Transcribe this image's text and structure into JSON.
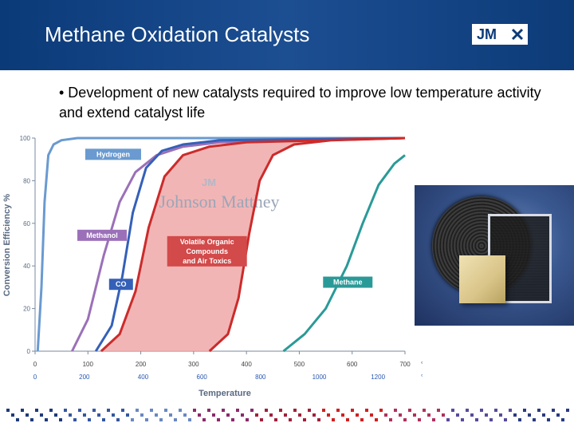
{
  "slide": {
    "title": "Methane Oxidation Catalysts",
    "logo_text": "JM",
    "bullet": "• Development of new catalysts required to improve low temperature activity and extend catalyst life",
    "header_color": "#0b3a78"
  },
  "chart_data": {
    "type": "line",
    "title": "",
    "ylabel": "Conversion Efficiency   %",
    "xlabel": "Temperature",
    "ylim": [
      0,
      100
    ],
    "xlim": [
      0,
      700
    ],
    "x_unit_primary": "°C",
    "x_unit_secondary": "°F",
    "yticks": [
      "0",
      "20",
      "40",
      "60",
      "80",
      "100"
    ],
    "xticks_c": [
      "0",
      "100",
      "200",
      "300",
      "400",
      "500",
      "600",
      "700"
    ],
    "xticks_f": [
      "0",
      "200",
      "400",
      "600",
      "800",
      "1000",
      "1200"
    ],
    "xticks_f_values_c": [
      -17.8,
      93.3,
      204.4,
      315.6,
      426.7,
      537.8,
      648.9
    ],
    "watermark": "Johnson Matthey",
    "watermark_logo": "JM",
    "series": [
      {
        "name": "Hydrogen",
        "color": "#6a9ad0",
        "x": [
          5,
          12,
          18,
          25,
          35,
          50,
          80,
          700
        ],
        "y": [
          0,
          30,
          70,
          92,
          97,
          99,
          100,
          100
        ]
      },
      {
        "name": "Methanol",
        "color": "#9b70b8",
        "x": [
          70,
          100,
          130,
          160,
          190,
          230,
          280,
          350,
          450,
          700
        ],
        "y": [
          0,
          15,
          45,
          70,
          84,
          92,
          96,
          98,
          99,
          100
        ]
      },
      {
        "name": "CO",
        "color": "#3560b8",
        "x": [
          115,
          145,
          165,
          185,
          210,
          240,
          280,
          350,
          700
        ],
        "y": [
          0,
          12,
          35,
          65,
          86,
          94,
          97,
          99,
          100
        ]
      },
      {
        "name": "VOC lower",
        "color": "#cc2b2b",
        "x": [
          125,
          160,
          190,
          215,
          245,
          280,
          330,
          400,
          700
        ],
        "y": [
          0,
          8,
          28,
          58,
          82,
          92,
          96,
          98,
          100
        ]
      },
      {
        "name": "VOC upper",
        "color": "#cc2b2b",
        "x": [
          330,
          365,
          385,
          405,
          425,
          450,
          490,
          560,
          700
        ],
        "y": [
          0,
          8,
          25,
          55,
          80,
          92,
          97,
          99,
          100
        ]
      },
      {
        "name": "Methane",
        "color": "#2a9a98",
        "x": [
          470,
          510,
          550,
          590,
          620,
          650,
          680,
          700
        ],
        "y": [
          0,
          8,
          20,
          40,
          60,
          78,
          88,
          92
        ]
      }
    ],
    "labels": [
      {
        "text": "Hydrogen",
        "color": "#6a9ad0"
      },
      {
        "text": "Methanol",
        "color": "#9b70b8"
      },
      {
        "text": "CO",
        "color": "#3560b8"
      },
      {
        "text": "Volatile Organic\nCompounds\nand Air Toxics",
        "color": "#d24a4a"
      },
      {
        "text": "Methane",
        "color": "#2a9a98"
      }
    ],
    "band_fill": "#f0a8a8"
  }
}
